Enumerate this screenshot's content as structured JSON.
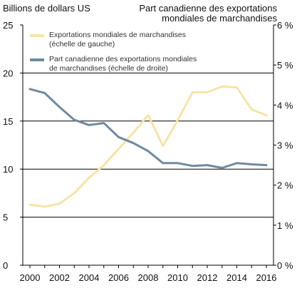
{
  "chart_data": {
    "type": "line",
    "left_axis_title": "Billions de dollars US",
    "right_axis_title_lines": [
      "Part canadienne des exportations",
      "mondiales de marchandises"
    ],
    "x": [
      2000,
      2001,
      2002,
      2003,
      2004,
      2005,
      2006,
      2007,
      2008,
      2009,
      2010,
      2011,
      2012,
      2013,
      2014,
      2015,
      2016
    ],
    "x_tick_labels": [
      "2000",
      "2002",
      "2004",
      "2006",
      "2008",
      "2010",
      "2012",
      "2014",
      "2016"
    ],
    "x_tick_values": [
      2000,
      2002,
      2004,
      2006,
      2008,
      2010,
      2012,
      2014,
      2016
    ],
    "ylim_left": [
      0,
      25
    ],
    "ylim_right": [
      0,
      6
    ],
    "y_left_ticks": [
      "0",
      "5",
      "10",
      "15",
      "20",
      "25"
    ],
    "y_left_tick_values": [
      0,
      5,
      10,
      15,
      20,
      25
    ],
    "y_right_ticks": [
      "0 %",
      "1 %",
      "2 %",
      "3 %",
      "4 %",
      "5 %",
      "6 %"
    ],
    "y_right_tick_values": [
      0,
      1,
      2,
      3,
      4,
      5,
      6
    ],
    "gridlines_left": [
      5,
      10,
      15,
      20
    ],
    "series": [
      {
        "name_lines": [
          "Exportations mondiales de marchandises",
          "(échelle de gauche)"
        ],
        "axis": "left",
        "color": "#f7e4a6",
        "values": [
          6.3,
          6.1,
          6.4,
          7.5,
          9.1,
          10.4,
          12.1,
          13.8,
          15.6,
          12.4,
          15.1,
          18.0,
          18.0,
          18.6,
          18.5,
          16.2,
          15.6
        ]
      },
      {
        "name_lines": [
          "Part canadienne des exportations mondiales",
          "de marchandises (échelle de droite)"
        ],
        "axis": "right",
        "color": "#6e8aa1",
        "values": [
          4.4,
          4.3,
          3.95,
          3.63,
          3.5,
          3.55,
          3.2,
          3.05,
          2.85,
          2.55,
          2.55,
          2.48,
          2.5,
          2.43,
          2.55,
          2.52,
          2.5
        ]
      }
    ]
  }
}
